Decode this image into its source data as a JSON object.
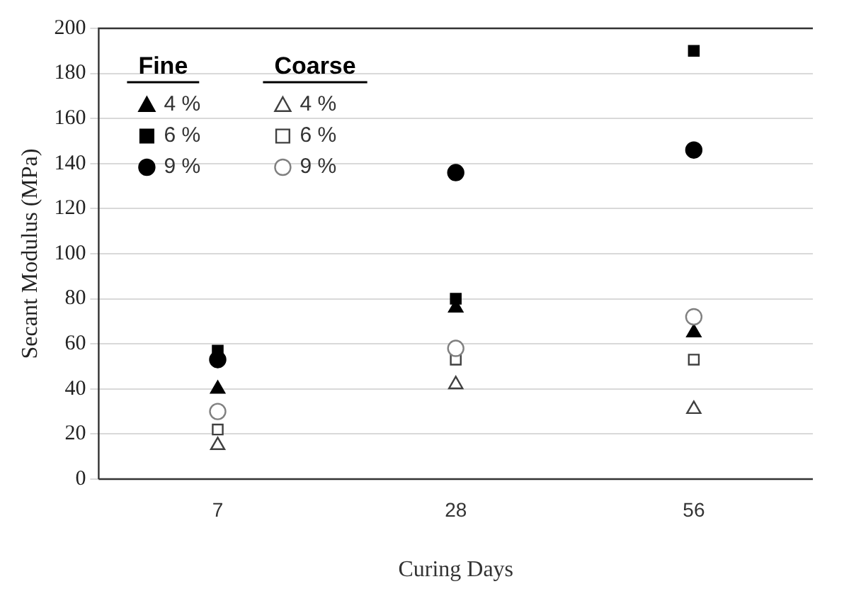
{
  "chart_data": {
    "type": "scatter",
    "xlabel": "Curing Days",
    "ylabel": "Secant Modulus (MPa)",
    "categories": [
      "7",
      "28",
      "56"
    ],
    "ylim": [
      0,
      200
    ],
    "yticks": [
      0,
      20,
      40,
      60,
      80,
      100,
      120,
      140,
      160,
      180,
      200
    ],
    "grid": "y",
    "legend": "top left",
    "annotations": [
      "Fine",
      "Coarse"
    ],
    "series": [
      {
        "name": "4 %",
        "color": "#000000",
        "marker": "triangle",
        "values": [
          40,
          76,
          65
        ]
      },
      {
        "name": "6 %",
        "color": "#000000",
        "marker": "square",
        "values": [
          57,
          80,
          190
        ]
      },
      {
        "name": "9 %",
        "color": "#000000",
        "marker": "circle",
        "values": [
          53,
          136,
          146
        ]
      },
      {
        "name": "4 %",
        "color": "#404040",
        "marker": "triangle",
        "values": [
          15,
          42,
          31
        ]
      },
      {
        "name": "6 %",
        "color": "#404040",
        "marker": "square",
        "values": [
          22,
          53,
          53
        ]
      },
      {
        "name": "9 %",
        "color": "#808080",
        "marker": "circle",
        "values": [
          30,
          58,
          72
        ]
      }
    ]
  }
}
